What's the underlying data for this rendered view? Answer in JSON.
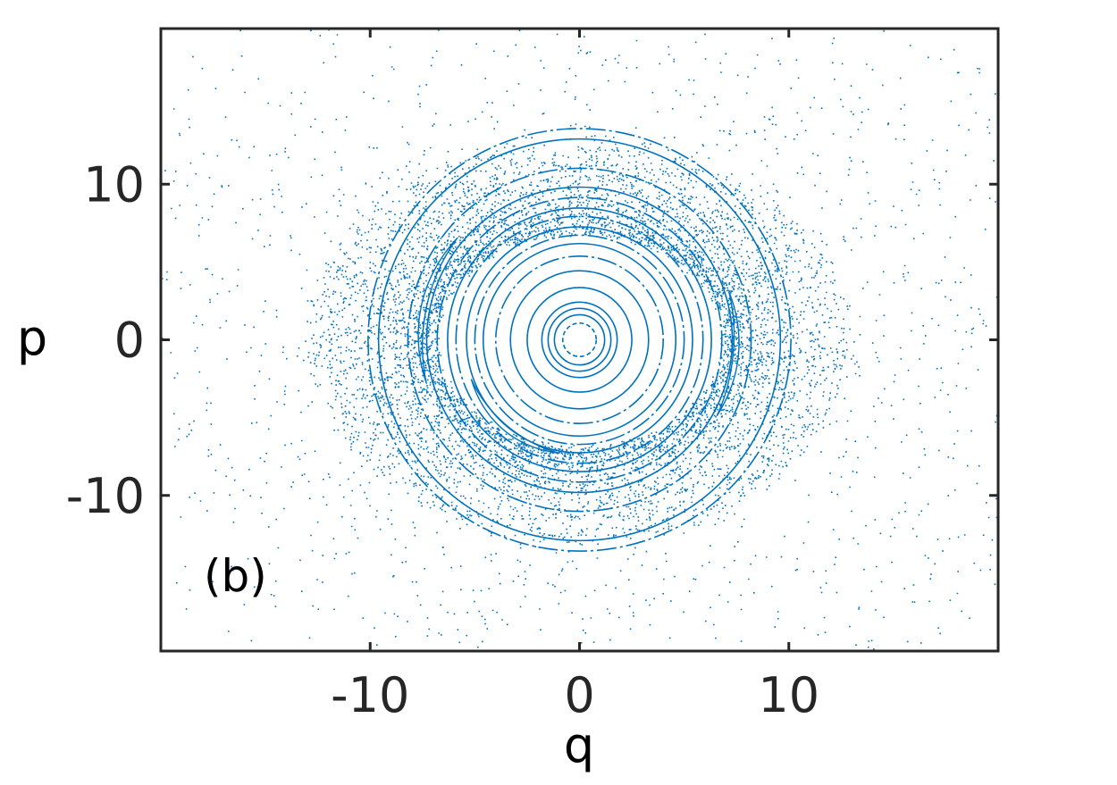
{
  "chart_data": {
    "type": "scatter",
    "title": "",
    "panel_label": "(b)",
    "xlabel": "q",
    "ylabel": "p",
    "xlim": [
      -20,
      20
    ],
    "ylim": [
      -20,
      20
    ],
    "xticks": [
      -10,
      0,
      10
    ],
    "yticks": [
      -10,
      0,
      10
    ],
    "xtick_labels": [
      "-10",
      "0",
      "10"
    ],
    "ytick_labels": [
      "-10",
      "0",
      "10"
    ],
    "grid": false,
    "marker_color": "#0072BD",
    "axis_color": "#262626",
    "center": [
      0,
      0
    ],
    "invariant_curves": [
      {
        "radius": 0.8,
        "style": "dashed"
      },
      {
        "radius": 1.2,
        "style": "solid"
      },
      {
        "radius": 1.5,
        "style": "solid"
      },
      {
        "radius": 1.8,
        "style": "solid"
      },
      {
        "radius": 2.5,
        "style": "solid"
      },
      {
        "radius": 3.3,
        "style": "solid"
      },
      {
        "radius": 4.0,
        "style": "dash-dot"
      },
      {
        "radius": 4.6,
        "style": "solid"
      },
      {
        "radius": 5.0,
        "style": "dash-dot"
      },
      {
        "radius": 5.4,
        "style": "solid"
      },
      {
        "radius": 5.9,
        "style": "dash-dot"
      },
      {
        "radius": 6.3,
        "style": "solid"
      },
      {
        "radius": 6.8,
        "style": "dash-dot"
      },
      {
        "radius": 7.3,
        "style": "solid"
      },
      {
        "radius": 8.2,
        "style": "dash-dot"
      },
      {
        "radius": 9.6,
        "style": "solid"
      },
      {
        "radius": 10.1,
        "style": "dash-dot"
      }
    ],
    "island_chains": [
      {
        "radius": 7.6,
        "angle_start": 140,
        "angle_end": 196
      },
      {
        "radius": 7.5,
        "angle_start": 331,
        "angle_end": 18
      },
      {
        "radius": 5.5,
        "angle_start": 200,
        "angle_end": 260
      }
    ],
    "chaotic_sea": {
      "dense_band_radius": [
        7.0,
        13.0
      ],
      "sparse_extent_radius": 26,
      "point_count_dense": 6500,
      "point_count_sparse": 1400
    }
  }
}
